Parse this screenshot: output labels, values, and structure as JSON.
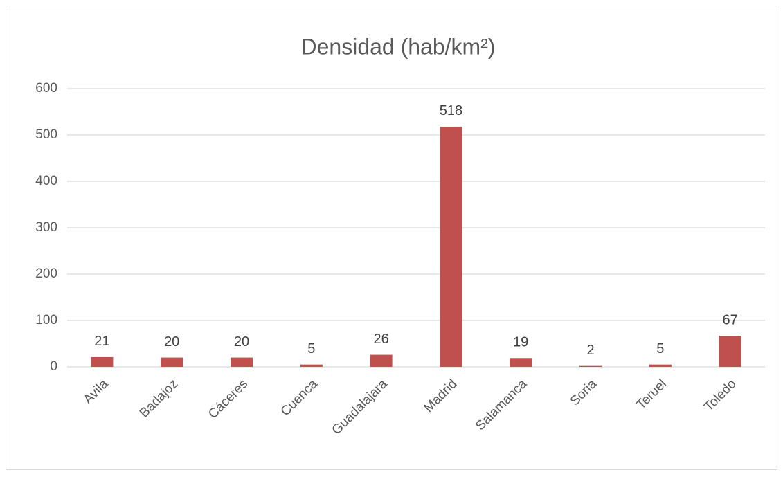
{
  "chart_data": {
    "type": "bar",
    "title": "Densidad (hab/km²)",
    "categories": [
      "Avila",
      "Badajoz",
      "Cáceres",
      "Cuenca",
      "Guadalajara",
      "Madrid",
      "Salamanca",
      "Soria",
      "Teruel",
      "Toledo"
    ],
    "values": [
      21,
      20,
      20,
      5,
      26,
      518,
      19,
      2,
      5,
      67
    ],
    "color": "#c0504d",
    "ylim": [
      0,
      600
    ],
    "yticks": [
      0,
      100,
      200,
      300,
      400,
      500,
      600
    ],
    "grid": true
  }
}
